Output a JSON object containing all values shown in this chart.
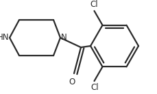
{
  "bg_color": "#ffffff",
  "line_color": "#2a2a2a",
  "line_width": 1.6,
  "font_size": 8.5,
  "atoms": {
    "HN_label": "HN",
    "N_label": "N",
    "O_label": "O",
    "Cl1_label": "Cl",
    "Cl2_label": "Cl"
  },
  "figsize": [
    2.3,
    1.37
  ],
  "dpi": 100
}
